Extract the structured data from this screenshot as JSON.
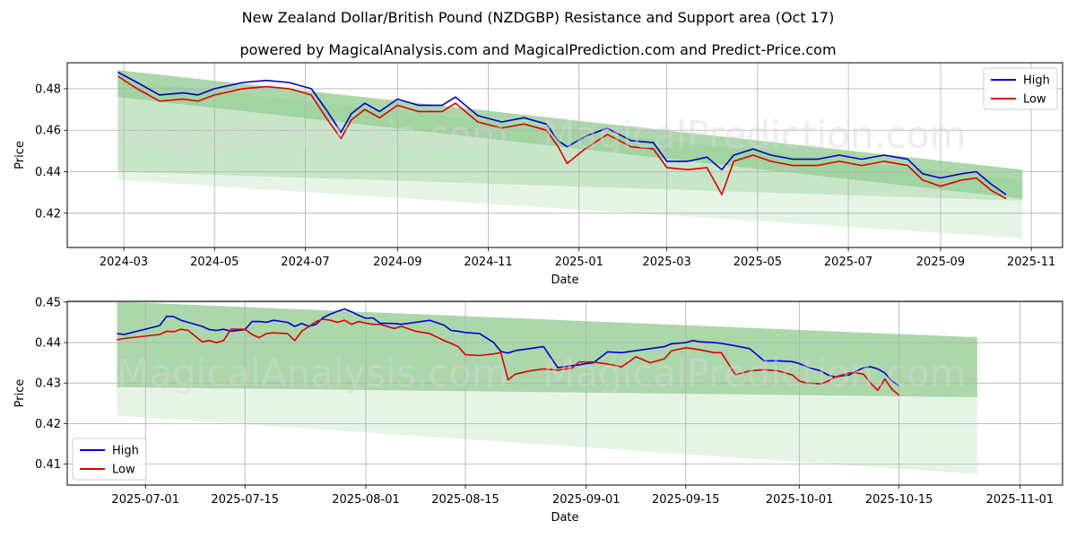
{
  "title": "New Zealand Dollar/British Pound (NZDGBP) Resistance and Support area (Oct 17)",
  "subtitle": "powered by MagicalAnalysis.com and MagicalPrediction.com and Predict-Price.com",
  "watermarks": [
    "MagicalAnalysis.com",
    "MagicalPrediction.com"
  ],
  "colors": {
    "high": "#0000cc",
    "low": "#dd0000",
    "band_dark": "#4ca64c",
    "band_light": "#8fcf8f",
    "grid": "#b0b0b0"
  },
  "chart_data": [
    {
      "type": "line",
      "xlabel": "Date",
      "ylabel": "Price",
      "xlim": [
        "2024-01-23",
        "2025-11-22"
      ],
      "ylim": [
        0.4035,
        0.4925
      ],
      "x_ticks": [
        "2024-03",
        "2024-05",
        "2024-07",
        "2024-09",
        "2024-11",
        "2025-01",
        "2025-03",
        "2025-05",
        "2025-07",
        "2025-09",
        "2025-11"
      ],
      "x_tick_dates": [
        "2024-03-01",
        "2024-05-01",
        "2024-07-01",
        "2024-09-01",
        "2024-11-01",
        "2025-01-01",
        "2025-03-01",
        "2025-05-01",
        "2025-07-01",
        "2025-09-01",
        "2025-11-01"
      ],
      "y_ticks": [
        "0.42",
        "0.44",
        "0.46",
        "0.48"
      ],
      "y_tick_values": [
        0.42,
        0.44,
        0.46,
        0.48
      ],
      "legend": {
        "position": "top-right",
        "entries": [
          "High",
          "Low"
        ]
      },
      "bands": [
        {
          "x": [
            "2024-02-26",
            "2025-10-26"
          ],
          "upper": [
            0.489,
            0.441
          ],
          "lower": [
            0.476,
            0.427
          ],
          "tone": "dark"
        },
        {
          "x": [
            "2024-02-26",
            "2025-10-26"
          ],
          "upper": [
            0.484,
            0.436
          ],
          "lower": [
            0.44,
            0.426
          ],
          "tone": "light"
        },
        {
          "x": [
            "2024-02-26",
            "2025-10-26"
          ],
          "upper": [
            0.489,
            0.441
          ],
          "lower": [
            0.436,
            0.408
          ],
          "tone": "pale"
        }
      ],
      "series": [
        {
          "name": "High",
          "x": [
            "2024-02-26",
            "2024-03-10",
            "2024-03-25",
            "2024-04-10",
            "2024-04-20",
            "2024-05-01",
            "2024-05-20",
            "2024-06-05",
            "2024-06-20",
            "2024-07-05",
            "2024-07-15",
            "2024-07-25",
            "2024-08-01",
            "2024-08-10",
            "2024-08-20",
            "2024-09-01",
            "2024-09-15",
            "2024-10-01",
            "2024-10-10",
            "2024-10-25",
            "2024-11-10",
            "2024-11-25",
            "2024-12-10",
            "2024-12-18",
            "2024-12-24",
            "2025-01-05",
            "2025-01-20",
            "2025-02-05",
            "2025-02-20",
            "2025-03-01",
            "2025-03-15",
            "2025-03-28",
            "2025-04-07",
            "2025-04-15",
            "2025-04-28",
            "2025-05-10",
            "2025-05-25",
            "2025-06-10",
            "2025-06-25",
            "2025-07-10",
            "2025-07-25",
            "2025-08-10",
            "2025-08-20",
            "2025-09-01",
            "2025-09-15",
            "2025-09-25",
            "2025-10-05",
            "2025-10-15"
          ],
          "values": [
            0.488,
            0.483,
            0.477,
            0.478,
            0.477,
            0.48,
            0.483,
            0.484,
            0.483,
            0.48,
            0.47,
            0.459,
            0.468,
            0.473,
            0.469,
            0.475,
            0.472,
            0.472,
            0.476,
            0.467,
            0.464,
            0.466,
            0.463,
            0.455,
            0.452,
            0.457,
            0.461,
            0.455,
            0.454,
            0.445,
            0.445,
            0.447,
            0.441,
            0.448,
            0.451,
            0.448,
            0.446,
            0.446,
            0.448,
            0.446,
            0.448,
            0.446,
            0.439,
            0.437,
            0.439,
            0.44,
            0.434,
            0.429
          ]
        },
        {
          "name": "Low",
          "x": [
            "2024-02-26",
            "2024-03-10",
            "2024-03-25",
            "2024-04-10",
            "2024-04-20",
            "2024-05-01",
            "2024-05-20",
            "2024-06-05",
            "2024-06-20",
            "2024-07-05",
            "2024-07-15",
            "2024-07-25",
            "2024-08-01",
            "2024-08-10",
            "2024-08-20",
            "2024-09-01",
            "2024-09-15",
            "2024-10-01",
            "2024-10-10",
            "2024-10-25",
            "2024-11-10",
            "2024-11-25",
            "2024-12-10",
            "2024-12-18",
            "2024-12-24",
            "2025-01-05",
            "2025-01-20",
            "2025-02-05",
            "2025-02-20",
            "2025-03-01",
            "2025-03-15",
            "2025-03-28",
            "2025-04-07",
            "2025-04-15",
            "2025-04-28",
            "2025-05-10",
            "2025-05-25",
            "2025-06-10",
            "2025-06-25",
            "2025-07-10",
            "2025-07-25",
            "2025-08-10",
            "2025-08-20",
            "2025-09-01",
            "2025-09-15",
            "2025-09-25",
            "2025-10-05",
            "2025-10-15"
          ],
          "values": [
            0.486,
            0.48,
            0.474,
            0.475,
            0.474,
            0.477,
            0.48,
            0.481,
            0.48,
            0.477,
            0.466,
            0.456,
            0.465,
            0.47,
            0.466,
            0.472,
            0.469,
            0.469,
            0.473,
            0.464,
            0.461,
            0.463,
            0.46,
            0.452,
            0.444,
            0.451,
            0.458,
            0.452,
            0.451,
            0.442,
            0.441,
            0.442,
            0.429,
            0.445,
            0.448,
            0.445,
            0.443,
            0.443,
            0.445,
            0.443,
            0.445,
            0.443,
            0.436,
            0.433,
            0.436,
            0.437,
            0.431,
            0.427
          ]
        }
      ]
    },
    {
      "type": "line",
      "xlabel": "Date",
      "ylabel": "Price",
      "xlim": [
        "2025-06-20",
        "2025-11-07"
      ],
      "ylim": [
        0.4048,
        0.4502
      ],
      "x_ticks": [
        "2025-07-01",
        "2025-07-15",
        "2025-08-01",
        "2025-08-15",
        "2025-09-01",
        "2025-09-15",
        "2025-10-01",
        "2025-10-15",
        "2025-11-01"
      ],
      "x_tick_dates": [
        "2025-07-01",
        "2025-07-15",
        "2025-08-01",
        "2025-08-15",
        "2025-09-01",
        "2025-09-15",
        "2025-10-01",
        "2025-10-15",
        "2025-11-01"
      ],
      "y_ticks": [
        "0.41",
        "0.42",
        "0.43",
        "0.44",
        "0.45"
      ],
      "y_tick_values": [
        0.41,
        0.42,
        0.43,
        0.44,
        0.45
      ],
      "legend": {
        "position": "bottom-left",
        "entries": [
          "High",
          "Low"
        ]
      },
      "bands": [
        {
          "x": [
            "2025-06-27",
            "2025-10-26"
          ],
          "upper": [
            0.4501,
            0.4413
          ],
          "lower": [
            0.429,
            0.4265
          ],
          "tone": "dark"
        },
        {
          "x": [
            "2025-06-27",
            "2025-10-26"
          ],
          "upper": [
            0.4501,
            0.4413
          ],
          "lower": [
            0.422,
            0.4075
          ],
          "tone": "pale"
        }
      ],
      "series": [
        {
          "name": "High",
          "x": [
            "2025-06-27",
            "2025-06-28",
            "2025-07-03",
            "2025-07-04",
            "2025-07-05",
            "2025-07-06",
            "2025-07-07",
            "2025-07-09",
            "2025-07-10",
            "2025-07-11",
            "2025-07-12",
            "2025-07-13",
            "2025-07-15",
            "2025-07-16",
            "2025-07-17",
            "2025-07-18",
            "2025-07-19",
            "2025-07-21",
            "2025-07-22",
            "2025-07-23",
            "2025-07-24",
            "2025-07-25",
            "2025-07-26",
            "2025-07-27",
            "2025-07-28",
            "2025-07-29",
            "2025-07-30",
            "2025-07-31",
            "2025-08-01",
            "2025-08-02",
            "2025-08-03",
            "2025-08-05",
            "2025-08-06",
            "2025-08-08",
            "2025-08-10",
            "2025-08-12",
            "2025-08-13",
            "2025-08-14",
            "2025-08-15",
            "2025-08-17",
            "2025-08-19",
            "2025-08-20",
            "2025-08-21",
            "2025-08-22",
            "2025-08-24",
            "2025-08-26",
            "2025-08-28",
            "2025-08-30",
            "2025-08-31",
            "2025-09-01",
            "2025-09-02",
            "2025-09-04",
            "2025-09-06",
            "2025-09-08",
            "2025-09-10",
            "2025-09-12",
            "2025-09-13",
            "2025-09-15",
            "2025-09-16",
            "2025-09-17",
            "2025-09-19",
            "2025-09-20",
            "2025-09-22",
            "2025-09-24",
            "2025-09-26",
            "2025-09-28",
            "2025-09-30",
            "2025-10-01",
            "2025-10-02",
            "2025-10-04",
            "2025-10-05",
            "2025-10-06",
            "2025-10-07",
            "2025-10-08",
            "2025-10-09",
            "2025-10-10",
            "2025-10-11",
            "2025-10-12",
            "2025-10-13",
            "2025-10-14",
            "2025-10-15"
          ],
          "values": [
            0.4422,
            0.442,
            0.4442,
            0.4465,
            0.4464,
            0.4455,
            0.445,
            0.444,
            0.4432,
            0.443,
            0.4433,
            0.4428,
            0.4432,
            0.4452,
            0.4452,
            0.445,
            0.4455,
            0.445,
            0.444,
            0.4447,
            0.444,
            0.4445,
            0.4462,
            0.447,
            0.4477,
            0.4483,
            0.4476,
            0.4467,
            0.446,
            0.4461,
            0.4448,
            0.4447,
            0.4445,
            0.445,
            0.4455,
            0.4443,
            0.443,
            0.4428,
            0.4425,
            0.4422,
            0.44,
            0.4378,
            0.4374,
            0.438,
            0.4385,
            0.439,
            0.4338,
            0.4343,
            0.4345,
            0.4348,
            0.435,
            0.4377,
            0.4375,
            0.438,
            0.4385,
            0.439,
            0.4397,
            0.44,
            0.4405,
            0.4402,
            0.44,
            0.4398,
            0.4392,
            0.4385,
            0.4355,
            0.4355,
            0.4353,
            0.4348,
            0.434,
            0.433,
            0.432,
            0.4315,
            0.4318,
            0.432,
            0.433,
            0.4338,
            0.434,
            0.4335,
            0.4325,
            0.4305,
            0.4293
          ]
        },
        {
          "name": "Low",
          "x": [
            "2025-06-27",
            "2025-06-28",
            "2025-07-03",
            "2025-07-04",
            "2025-07-05",
            "2025-07-06",
            "2025-07-07",
            "2025-07-09",
            "2025-07-10",
            "2025-07-11",
            "2025-07-12",
            "2025-07-13",
            "2025-07-15",
            "2025-07-16",
            "2025-07-17",
            "2025-07-18",
            "2025-07-19",
            "2025-07-21",
            "2025-07-22",
            "2025-07-23",
            "2025-07-24",
            "2025-07-25",
            "2025-07-26",
            "2025-07-27",
            "2025-07-28",
            "2025-07-29",
            "2025-07-30",
            "2025-07-31",
            "2025-08-01",
            "2025-08-02",
            "2025-08-03",
            "2025-08-05",
            "2025-08-06",
            "2025-08-08",
            "2025-08-10",
            "2025-08-12",
            "2025-08-13",
            "2025-08-14",
            "2025-08-15",
            "2025-08-17",
            "2025-08-19",
            "2025-08-20",
            "2025-08-21",
            "2025-08-22",
            "2025-08-24",
            "2025-08-26",
            "2025-08-28",
            "2025-08-30",
            "2025-08-31",
            "2025-09-01",
            "2025-09-02",
            "2025-09-04",
            "2025-09-06",
            "2025-09-08",
            "2025-09-10",
            "2025-09-12",
            "2025-09-13",
            "2025-09-15",
            "2025-09-16",
            "2025-09-17",
            "2025-09-19",
            "2025-09-20",
            "2025-09-22",
            "2025-09-24",
            "2025-09-26",
            "2025-09-28",
            "2025-09-30",
            "2025-10-01",
            "2025-10-02",
            "2025-10-04",
            "2025-10-05",
            "2025-10-06",
            "2025-10-07",
            "2025-10-08",
            "2025-10-09",
            "2025-10-10",
            "2025-10-11",
            "2025-10-12",
            "2025-10-13",
            "2025-10-14",
            "2025-10-15"
          ],
          "values": [
            0.4407,
            0.441,
            0.442,
            0.4428,
            0.4427,
            0.4433,
            0.443,
            0.4402,
            0.4405,
            0.44,
            0.4405,
            0.4433,
            0.4433,
            0.442,
            0.4412,
            0.4422,
            0.4424,
            0.4422,
            0.4405,
            0.4428,
            0.444,
            0.4452,
            0.4458,
            0.4455,
            0.445,
            0.4455,
            0.4445,
            0.4452,
            0.4448,
            0.4445,
            0.4445,
            0.4435,
            0.444,
            0.4428,
            0.4422,
            0.4405,
            0.4398,
            0.439,
            0.437,
            0.4368,
            0.4372,
            0.4375,
            0.4308,
            0.4322,
            0.433,
            0.4335,
            0.4332,
            0.4337,
            0.4352,
            0.4352,
            0.4352,
            0.4347,
            0.434,
            0.4365,
            0.435,
            0.436,
            0.438,
            0.4387,
            0.4385,
            0.4382,
            0.4375,
            0.4375,
            0.432,
            0.433,
            0.4333,
            0.433,
            0.432,
            0.4305,
            0.43,
            0.4298,
            0.4305,
            0.4315,
            0.432,
            0.4325,
            0.4325,
            0.4322,
            0.43,
            0.4282,
            0.431,
            0.4285,
            0.427
          ]
        }
      ]
    }
  ]
}
